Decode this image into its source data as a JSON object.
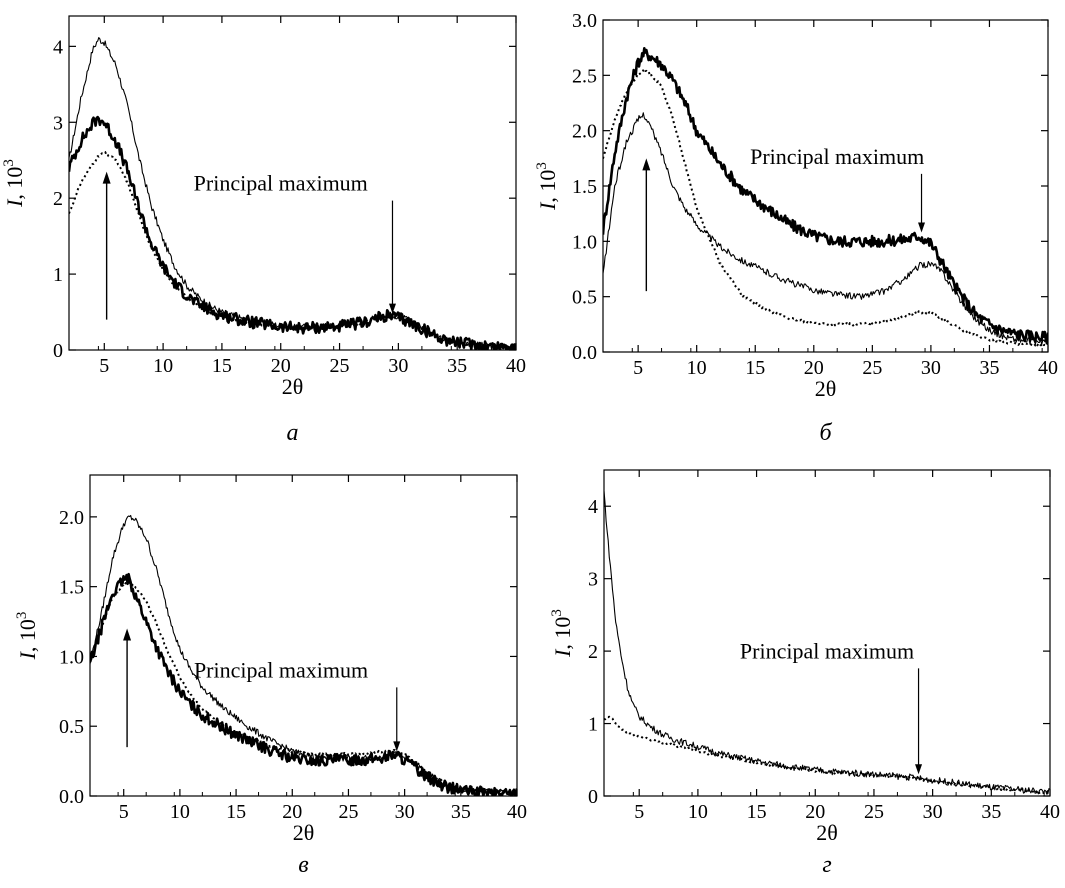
{
  "chart_data": [
    {
      "id": "a",
      "type": "line",
      "panel_label": "a",
      "xlabel": "2θ",
      "ylabel": "I, 10³",
      "ylabel_parts": {
        "italic": "I",
        "mid": ", 10",
        "sup": "3"
      },
      "xlim": [
        2,
        40
      ],
      "ylim": [
        0,
        4.4
      ],
      "xticks": [
        5,
        10,
        15,
        20,
        25,
        30,
        35,
        40
      ],
      "yticks": [
        0,
        1,
        2,
        3,
        4
      ],
      "ytick_labels": [
        "0",
        "1",
        "2",
        "3",
        "4"
      ],
      "annotations": [
        {
          "text": "Principal maximum",
          "x": 29.5,
          "y": 0.48,
          "text_x": 20.0,
          "text_y": 2.1
        },
        {
          "text": "",
          "x": 5.2,
          "y": 2.35,
          "tail_y": 0.4
        }
      ],
      "series": [
        {
          "style": "thin",
          "x": [
            2,
            3,
            4,
            4.5,
            5,
            6,
            7,
            8,
            9,
            10,
            11,
            12,
            13,
            14,
            15,
            17,
            20,
            22,
            25,
            27,
            28,
            29,
            30,
            31,
            32,
            33,
            34,
            35,
            37,
            40
          ],
          "y": [
            2.5,
            3.3,
            3.95,
            4.1,
            4.05,
            3.75,
            3.2,
            2.5,
            1.9,
            1.45,
            1.1,
            0.85,
            0.7,
            0.58,
            0.5,
            0.4,
            0.32,
            0.3,
            0.32,
            0.37,
            0.42,
            0.46,
            0.45,
            0.38,
            0.3,
            0.22,
            0.15,
            0.1,
            0.06,
            0.04
          ]
        },
        {
          "style": "thick",
          "x": [
            2,
            3,
            4,
            4.5,
            5,
            6,
            7,
            8,
            9,
            10,
            11,
            12,
            13,
            14,
            15,
            17,
            20,
            22,
            25,
            27,
            28,
            29,
            30,
            31,
            32,
            33,
            34,
            35,
            37,
            40
          ],
          "y": [
            2.4,
            2.75,
            2.98,
            3.05,
            3.0,
            2.75,
            2.35,
            1.85,
            1.4,
            1.1,
            0.88,
            0.72,
            0.6,
            0.52,
            0.46,
            0.38,
            0.3,
            0.29,
            0.31,
            0.36,
            0.41,
            0.45,
            0.43,
            0.36,
            0.28,
            0.2,
            0.14,
            0.1,
            0.06,
            0.04
          ]
        },
        {
          "style": "dotted",
          "x": [
            2,
            3,
            4,
            4.5,
            5,
            6,
            7,
            8,
            9,
            10,
            11,
            12,
            13,
            14,
            15,
            17,
            20,
            22,
            25,
            27,
            28,
            29,
            30,
            31,
            32,
            33,
            34,
            35,
            37,
            40
          ],
          "y": [
            1.8,
            2.2,
            2.45,
            2.55,
            2.6,
            2.5,
            2.2,
            1.75,
            1.35,
            1.05,
            0.85,
            0.7,
            0.58,
            0.5,
            0.45,
            0.37,
            0.3,
            0.29,
            0.31,
            0.36,
            0.41,
            0.44,
            0.43,
            0.36,
            0.28,
            0.2,
            0.14,
            0.1,
            0.06,
            0.04
          ]
        }
      ]
    },
    {
      "id": "b",
      "type": "line",
      "panel_label": "б",
      "xlabel": "2θ",
      "ylabel": "I, 10³",
      "ylabel_parts": {
        "italic": "I",
        "mid": ", 10",
        "sup": "3"
      },
      "xlim": [
        2,
        40
      ],
      "ylim": [
        0,
        3.0
      ],
      "xticks": [
        5,
        10,
        15,
        20,
        25,
        30,
        35,
        40
      ],
      "yticks": [
        0,
        0.5,
        1.0,
        1.5,
        2.0,
        2.5,
        3.0
      ],
      "ytick_labels": [
        "0.0",
        "0.5",
        "1.0",
        "1.5",
        "2.0",
        "2.5",
        "3.0"
      ],
      "annotations": [
        {
          "text": "Principal maximum",
          "x": 29.2,
          "y": 1.08,
          "text_x": 22.0,
          "text_y": 1.7
        },
        {
          "text": "",
          "x": 5.7,
          "y": 1.75,
          "tail_y": 0.55
        }
      ],
      "series": [
        {
          "style": "thick",
          "x": [
            2,
            3,
            4,
            5,
            5.5,
            6,
            7,
            8,
            9,
            10,
            12,
            14,
            16,
            18,
            20,
            22,
            24,
            26,
            28,
            29,
            30,
            31,
            32,
            33,
            34,
            35,
            36,
            37,
            38,
            40
          ],
          "y": [
            1.1,
            1.8,
            2.3,
            2.62,
            2.7,
            2.68,
            2.6,
            2.45,
            2.25,
            2.0,
            1.7,
            1.45,
            1.3,
            1.15,
            1.05,
            1.0,
            1.0,
            1.0,
            1.02,
            1.05,
            0.98,
            0.8,
            0.6,
            0.45,
            0.32,
            0.25,
            0.2,
            0.17,
            0.15,
            0.13
          ]
        },
        {
          "style": "dotted",
          "x": [
            2,
            3,
            4,
            5,
            5.5,
            6,
            7,
            8,
            9,
            10,
            12,
            14,
            16,
            18,
            20,
            22,
            24,
            26,
            28,
            29,
            30,
            31,
            32,
            33,
            34,
            35,
            36,
            37,
            38,
            40
          ],
          "y": [
            1.75,
            2.1,
            2.35,
            2.5,
            2.55,
            2.52,
            2.4,
            2.1,
            1.7,
            1.3,
            0.8,
            0.5,
            0.38,
            0.3,
            0.26,
            0.25,
            0.25,
            0.28,
            0.33,
            0.36,
            0.35,
            0.3,
            0.24,
            0.18,
            0.14,
            0.11,
            0.09,
            0.08,
            0.07,
            0.07
          ]
        },
        {
          "style": "thin",
          "x": [
            2,
            3,
            4,
            5,
            5.5,
            6,
            7,
            8,
            9,
            10,
            12,
            14,
            16,
            18,
            20,
            22,
            24,
            26,
            28,
            29,
            30,
            31,
            32,
            33,
            34,
            35,
            36,
            37,
            38,
            40
          ],
          "y": [
            0.7,
            1.5,
            1.9,
            2.1,
            2.15,
            2.05,
            1.8,
            1.5,
            1.3,
            1.15,
            0.95,
            0.82,
            0.72,
            0.63,
            0.56,
            0.52,
            0.5,
            0.55,
            0.68,
            0.78,
            0.8,
            0.72,
            0.55,
            0.4,
            0.28,
            0.2,
            0.15,
            0.12,
            0.1,
            0.09
          ]
        }
      ]
    },
    {
      "id": "c",
      "type": "line",
      "panel_label": "в",
      "xlabel": "2θ",
      "ylabel": "I, 10³",
      "ylabel_parts": {
        "italic": "I",
        "mid": ", 10",
        "sup": "3"
      },
      "xlim": [
        2,
        40
      ],
      "ylim": [
        0,
        2.3
      ],
      "xticks": [
        5,
        10,
        15,
        20,
        25,
        30,
        35,
        40
      ],
      "yticks": [
        0,
        0.5,
        1.0,
        1.5,
        2.0
      ],
      "ytick_labels": [
        "0.0",
        "0.5",
        "1.0",
        "1.5",
        "2.0"
      ],
      "annotations": [
        {
          "text": "Principal maximum",
          "x": 29.3,
          "y": 0.32,
          "text_x": 19.0,
          "text_y": 0.85
        },
        {
          "text": "",
          "x": 5.3,
          "y": 1.2,
          "tail_y": 0.35
        }
      ],
      "series": [
        {
          "style": "thin",
          "x": [
            2,
            3,
            4,
            5,
            5.5,
            6,
            7,
            8,
            9,
            10,
            11,
            12,
            14,
            16,
            18,
            20,
            22,
            24,
            26,
            28,
            29,
            30,
            31,
            32,
            33,
            34,
            35,
            36,
            38,
            40
          ],
          "y": [
            0.95,
            1.3,
            1.7,
            1.95,
            2.0,
            1.98,
            1.85,
            1.6,
            1.3,
            1.05,
            0.9,
            0.78,
            0.62,
            0.5,
            0.4,
            0.32,
            0.28,
            0.27,
            0.27,
            0.28,
            0.3,
            0.28,
            0.22,
            0.16,
            0.11,
            0.07,
            0.05,
            0.04,
            0.03,
            0.03
          ]
        },
        {
          "style": "thick",
          "x": [
            2,
            3,
            4,
            5,
            5.5,
            6,
            7,
            8,
            9,
            10,
            11,
            12,
            14,
            16,
            18,
            20,
            22,
            24,
            26,
            28,
            29,
            30,
            31,
            32,
            33,
            34,
            35,
            36,
            38,
            40
          ],
          "y": [
            0.95,
            1.2,
            1.45,
            1.55,
            1.55,
            1.45,
            1.25,
            1.05,
            0.88,
            0.75,
            0.65,
            0.58,
            0.48,
            0.4,
            0.33,
            0.27,
            0.25,
            0.26,
            0.26,
            0.27,
            0.3,
            0.26,
            0.2,
            0.14,
            0.09,
            0.06,
            0.04,
            0.03,
            0.02,
            0.02
          ]
        },
        {
          "style": "dotted",
          "x": [
            2,
            3,
            4,
            5,
            5.5,
            6,
            7,
            8,
            9,
            10,
            11,
            12,
            14,
            16,
            18,
            20,
            22,
            24,
            26,
            28,
            29,
            30,
            31,
            32,
            33,
            34,
            35,
            36,
            38,
            40
          ],
          "y": [
            0.95,
            1.2,
            1.42,
            1.52,
            1.53,
            1.5,
            1.4,
            1.22,
            1.02,
            0.85,
            0.72,
            0.62,
            0.5,
            0.42,
            0.36,
            0.32,
            0.3,
            0.3,
            0.3,
            0.32,
            0.33,
            0.3,
            0.24,
            0.17,
            0.12,
            0.08,
            0.06,
            0.04,
            0.03,
            0.03
          ]
        }
      ]
    },
    {
      "id": "d",
      "type": "line",
      "panel_label": "г",
      "xlabel": "2θ",
      "ylabel": "I, 10³",
      "ylabel_parts": {
        "italic": "I",
        "mid": ", 10",
        "sup": "3"
      },
      "xlim": [
        2,
        40
      ],
      "ylim": [
        0,
        4.5
      ],
      "xticks": [
        5,
        10,
        15,
        20,
        25,
        30,
        35,
        40
      ],
      "yticks": [
        0,
        1,
        2,
        3,
        4
      ],
      "ytick_labels": [
        "0",
        "1",
        "2",
        "3",
        "4"
      ],
      "annotations": [
        {
          "text": "Principal maximum",
          "x": 28.8,
          "y": 0.3,
          "text_x": 21.0,
          "text_y": 1.9
        }
      ],
      "series": [
        {
          "style": "thin",
          "x": [
            2,
            2.3,
            2.7,
            3,
            3.5,
            4,
            4.5,
            5,
            6,
            7,
            8,
            10,
            12,
            15,
            18,
            20,
            22,
            25,
            28,
            30,
            32,
            35,
            38,
            40
          ],
          "y": [
            4.2,
            3.6,
            2.9,
            2.4,
            1.9,
            1.5,
            1.25,
            1.1,
            0.95,
            0.85,
            0.78,
            0.68,
            0.58,
            0.48,
            0.4,
            0.36,
            0.33,
            0.3,
            0.26,
            0.22,
            0.18,
            0.12,
            0.08,
            0.06
          ]
        },
        {
          "style": "dotted",
          "x": [
            2,
            2.5,
            3,
            3.5,
            4,
            4.5,
            5,
            6,
            7,
            8,
            10,
            12,
            15,
            18,
            20,
            22,
            25,
            28,
            30,
            32,
            35,
            38,
            40
          ],
          "y": [
            1.05,
            1.1,
            1.0,
            0.92,
            0.88,
            0.84,
            0.82,
            0.78,
            0.74,
            0.7,
            0.62,
            0.55,
            0.46,
            0.39,
            0.35,
            0.32,
            0.29,
            0.25,
            0.21,
            0.17,
            0.11,
            0.07,
            0.05
          ]
        }
      ]
    }
  ]
}
